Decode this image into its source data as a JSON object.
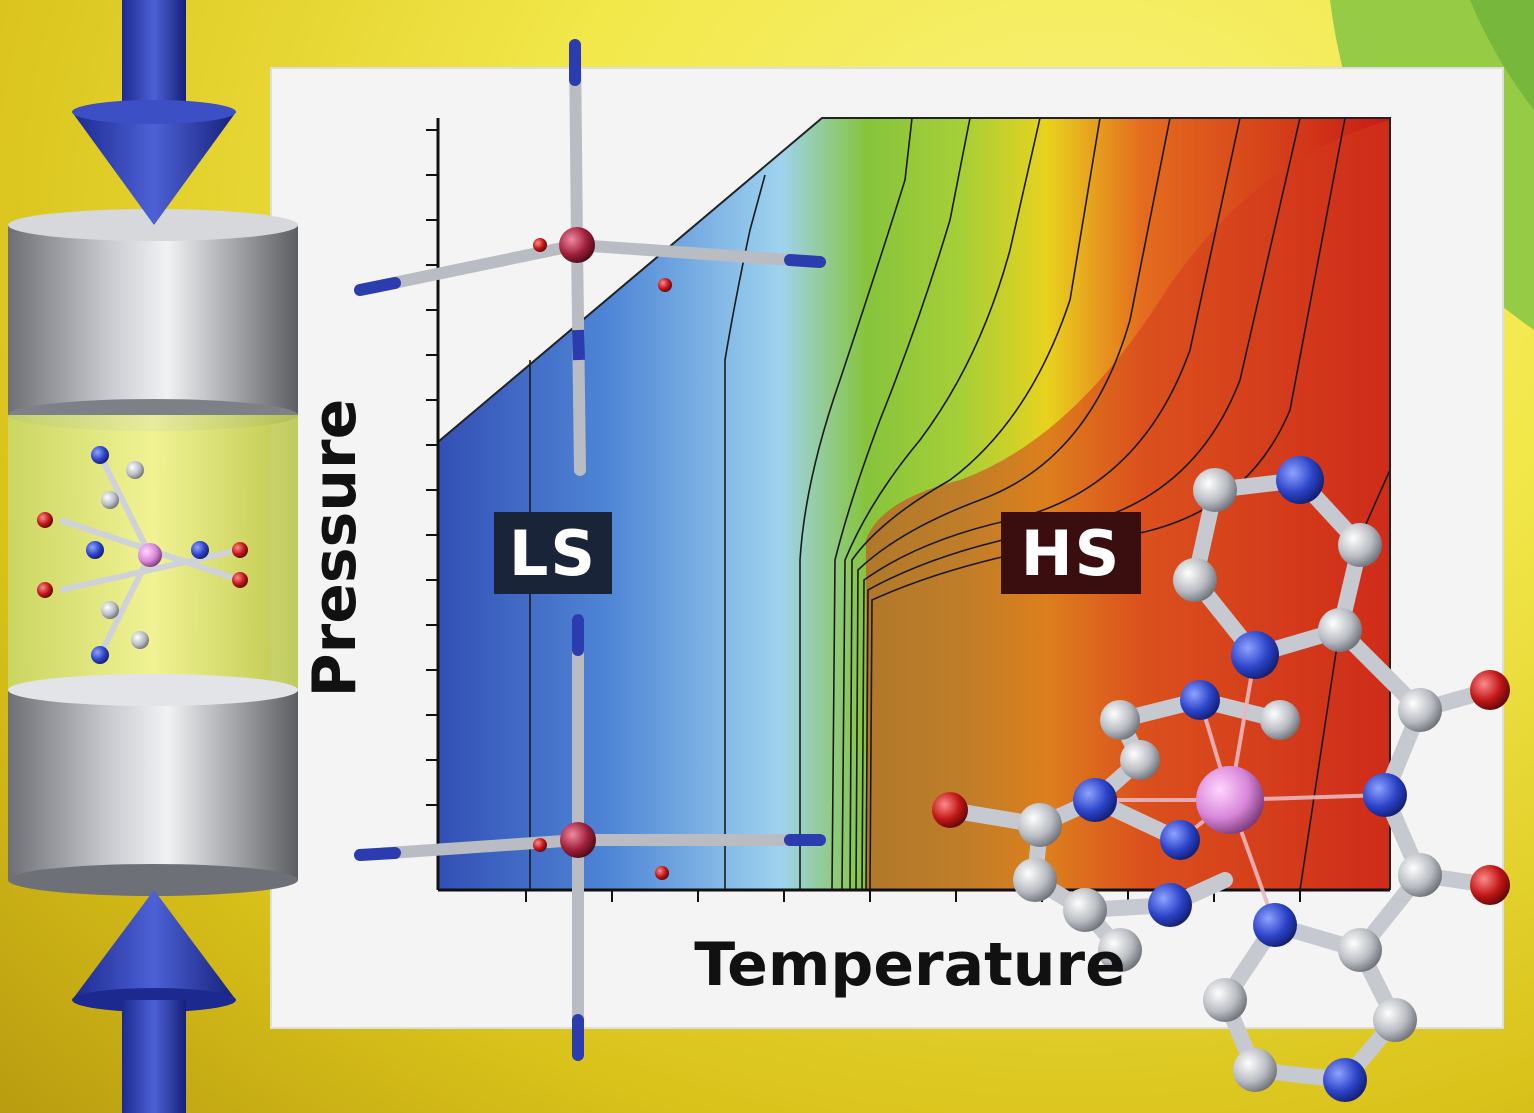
{
  "chart": {
    "xlabel": "Temperature",
    "ylabel": "Pressure",
    "regions": [
      "LS",
      "HS"
    ]
  },
  "colors": {
    "background_yellow": "#f2e84a",
    "ls_blue": "#3a63c4",
    "hs_red": "#d8321e",
    "transition_green": "#8cc63c",
    "arrow_blue": "#2a3cae"
  },
  "icons": [
    "compression-arrow-icon",
    "pressure-cell-icon",
    "molecule-icon"
  ]
}
